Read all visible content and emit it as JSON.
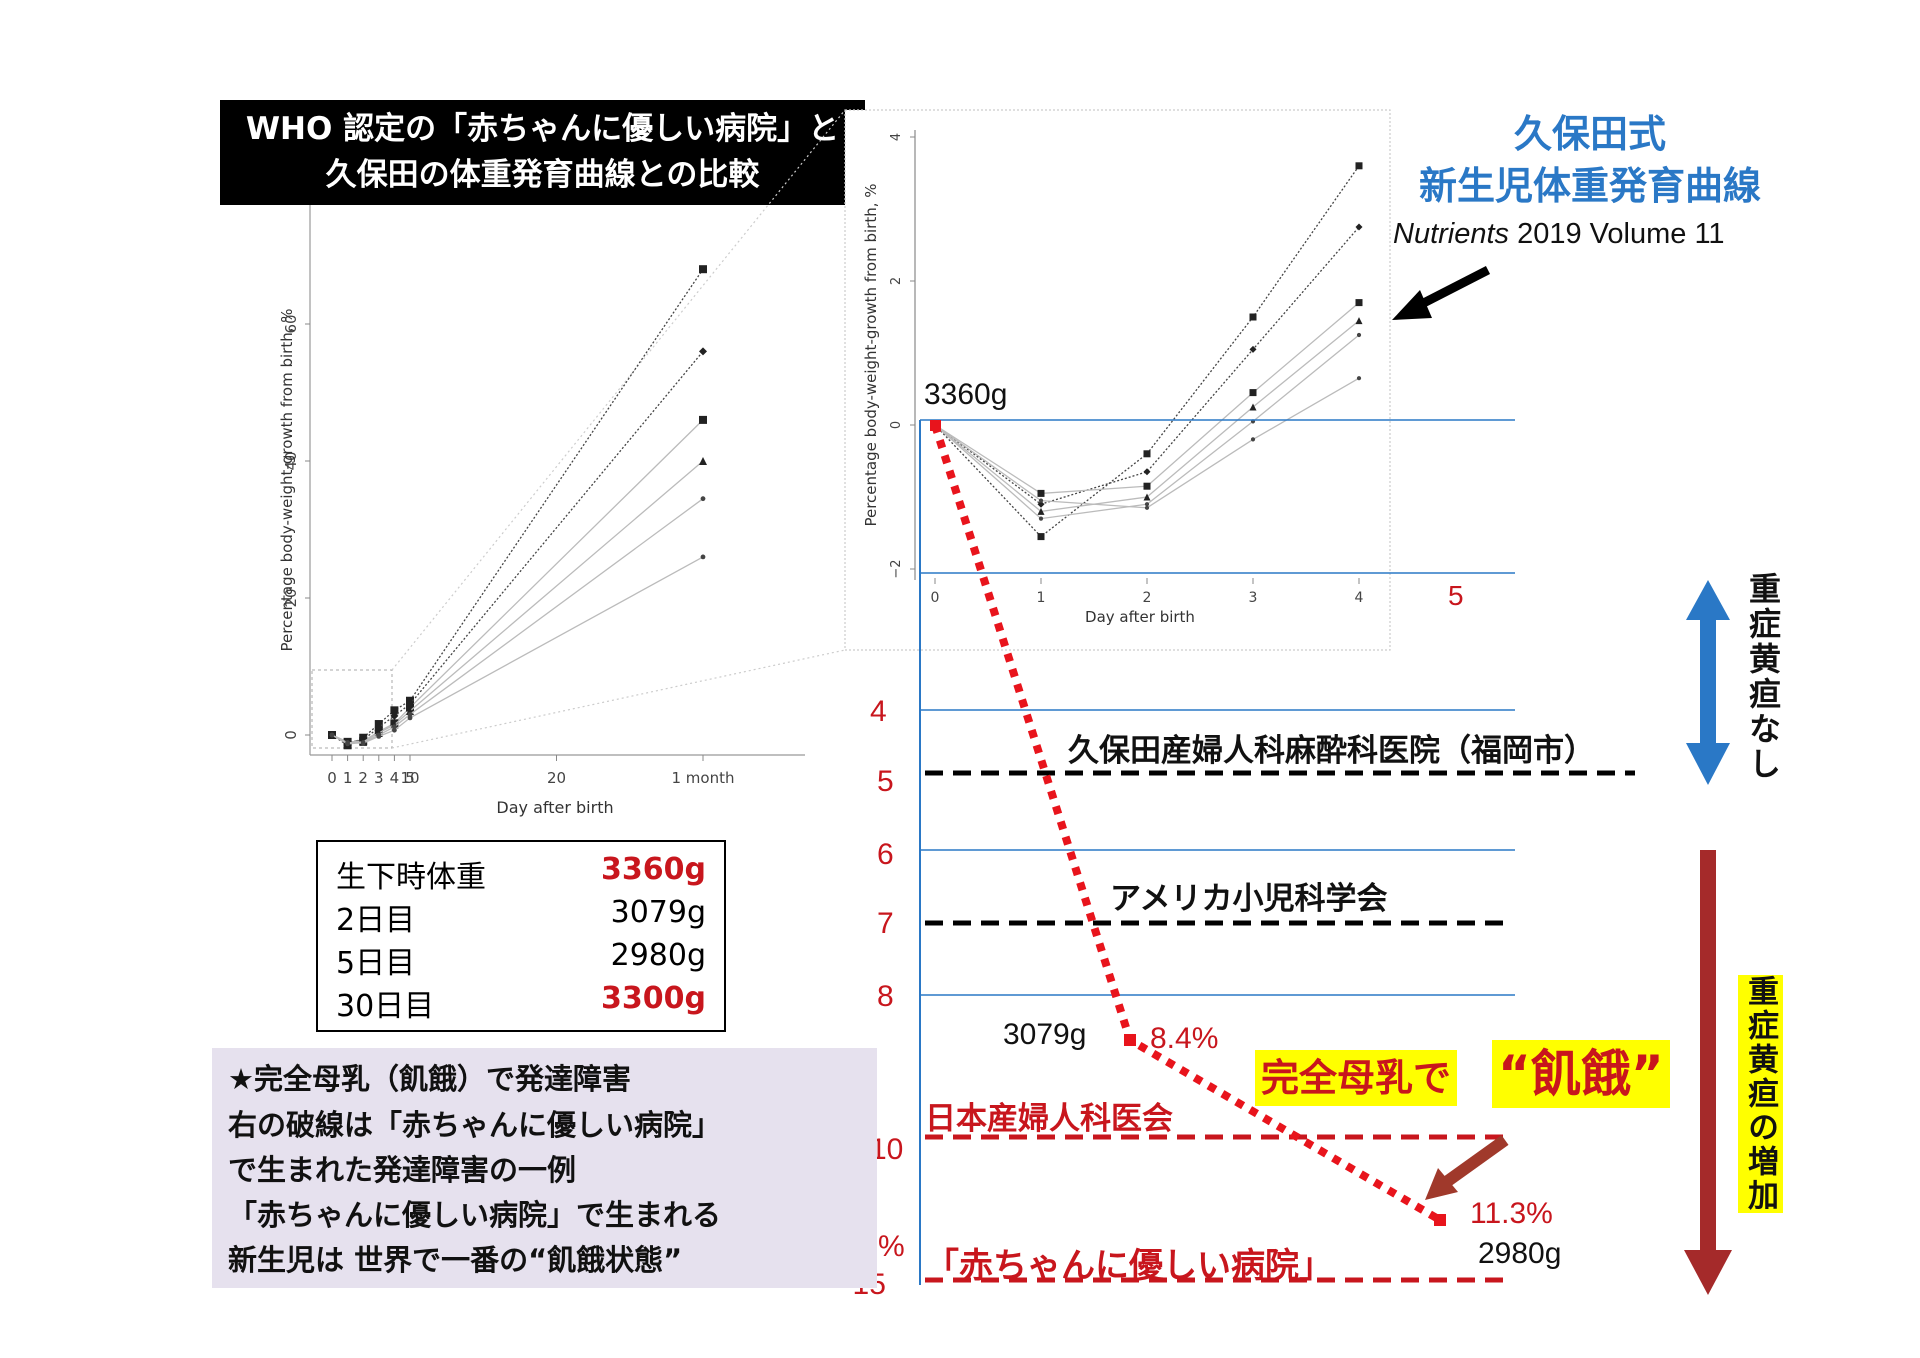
{
  "title": {
    "line1": "WHO 認定の「赤ちゃんに優しい病院」と",
    "line2": "久保田の体重発育曲線との比較"
  },
  "source": {
    "title_line1": "久保田式",
    "title_line2": "新生児体重発育曲線",
    "journal_italic": "Nutrients",
    "journal_rest": " 2019 Volume 11"
  },
  "weight_table": {
    "rows": [
      {
        "label": "生下時体重",
        "value": "3360g",
        "emphasis": true
      },
      {
        "label": "2日目",
        "value": "3079g",
        "emphasis": false
      },
      {
        "label": "5日目",
        "value": "2980g",
        "emphasis": false
      },
      {
        "label": "30日目",
        "value": "3300g",
        "emphasis": true
      }
    ]
  },
  "note": {
    "lines": [
      "★完全母乳（飢餓）で発達障害",
      "右の破線は「赤ちゃんに優しい病院」",
      "で生まれた発達障害の一例",
      "「赤ちゃんに優しい病院」で生まれる",
      "新生児は 世界で一番の“飢餓状態”"
    ]
  },
  "scale": {
    "ticks": [
      "4",
      "5",
      "6",
      "7",
      "8",
      "10",
      "%",
      "−15"
    ],
    "top_tick": "5"
  },
  "thresholds": {
    "kubota": "久保田産婦人科麻酔科医院（福岡市）",
    "aap": "アメリカ小児科学会",
    "jaog": "日本産婦人科医会",
    "bfh": "「赤ちゃんに優しい病院」"
  },
  "side_labels": {
    "no_jaundice": "重症黄疸なし",
    "more_jaundice": "重症黄疸の増加"
  },
  "starvation": {
    "prefix": "完全母乳で",
    "word": "“飢餓”"
  },
  "colors": {
    "red": "#c8161d",
    "darkred": "#a52a2a",
    "blue": "#2a78c6",
    "yellow": "#ffff00"
  },
  "chart_data": [
    {
      "type": "line",
      "ylabel": "Percentage body-weight-growth from birth, %",
      "xlabel": "Day after birth",
      "x_tick_labels": [
        "0",
        "1",
        "2",
        "3",
        "4",
        "5",
        "10",
        "20",
        "1 month"
      ],
      "y_tick_labels": [
        "0",
        "20",
        "40",
        "60"
      ],
      "x": [
        0,
        1,
        2,
        3,
        4,
        5,
        30
      ],
      "series": [
        {
          "values": [
            0,
            -1.5,
            -0.4,
            1.6,
            3.6,
            5.0,
            68
          ]
        },
        {
          "values": [
            0,
            -1.1,
            -0.7,
            1.1,
            2.8,
            4.5,
            56
          ]
        },
        {
          "values": [
            0,
            -1.0,
            -0.9,
            0.5,
            1.7,
            4.0,
            46
          ]
        },
        {
          "values": [
            0,
            -1.2,
            -1.0,
            0.3,
            1.5,
            3.5,
            40
          ]
        },
        {
          "values": [
            0,
            -1.3,
            -1.1,
            0.0,
            1.2,
            3.0,
            34.5
          ]
        },
        {
          "values": [
            0,
            -1.1,
            -1.2,
            -0.2,
            0.7,
            2.5,
            26
          ]
        }
      ],
      "xlim": [
        0,
        30
      ],
      "ylim": [
        -3,
        75
      ]
    },
    {
      "type": "line",
      "ylabel": "Percentage body-weight-growth from birth, %",
      "xlabel": "Day after birth",
      "x_tick_labels": [
        "0",
        "1",
        "2",
        "3",
        "4"
      ],
      "y_tick_labels": [
        "−2",
        "0",
        "2",
        "4"
      ],
      "x": [
        0,
        1,
        2,
        3,
        4
      ],
      "series": [
        {
          "values": [
            0,
            -1.55,
            -0.4,
            1.5,
            3.6
          ]
        },
        {
          "values": [
            0,
            -1.1,
            -0.65,
            1.05,
            2.75
          ]
        },
        {
          "values": [
            0,
            -0.95,
            -0.85,
            0.45,
            1.7
          ]
        },
        {
          "values": [
            0,
            -1.2,
            -1.0,
            0.25,
            1.45
          ]
        },
        {
          "values": [
            0,
            -1.3,
            -1.1,
            0.05,
            1.25
          ]
        },
        {
          "values": [
            0,
            -1.05,
            -1.15,
            -0.2,
            0.65
          ]
        }
      ],
      "xlim": [
        0,
        4
      ],
      "ylim": [
        -2.1,
        4
      ]
    },
    {
      "type": "line",
      "name": "bfh-case",
      "points": [
        {
          "weight": "3360g",
          "percent": "",
          "loss": 0
        },
        {
          "weight": "3079g",
          "percent": "8.4%",
          "loss": 8.4
        },
        {
          "weight": "2980g",
          "percent": "11.3%",
          "loss": 11.3
        }
      ]
    }
  ]
}
